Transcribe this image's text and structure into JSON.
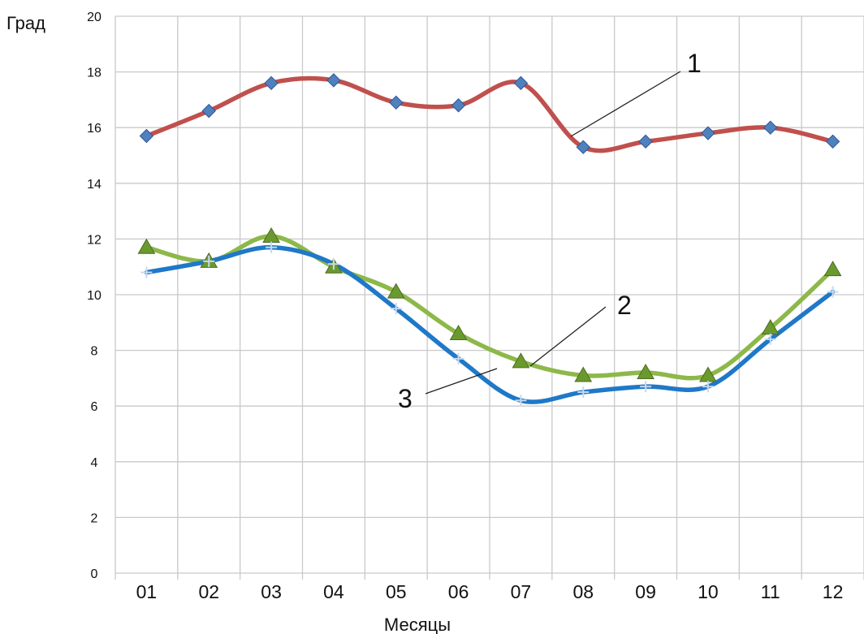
{
  "chart_data": {
    "type": "line",
    "categories": [
      "01",
      "02",
      "03",
      "04",
      "05",
      "06",
      "07",
      "08",
      "09",
      "10",
      "11",
      "12"
    ],
    "xlabel": "Месяцы",
    "ylabel": "Град",
    "ylim": [
      0,
      20
    ],
    "yticks": [
      "0",
      "2",
      "4",
      "6",
      "8",
      "10",
      "12",
      "14",
      "16",
      "18",
      "20"
    ],
    "grid": true,
    "series": [
      {
        "label": "1",
        "color": "#c0504d",
        "marker": "diamond",
        "marker_color": "#4f81bd",
        "values": [
          15.7,
          16.6,
          17.6,
          17.7,
          16.9,
          16.8,
          17.6,
          15.3,
          15.5,
          15.8,
          16.0,
          15.5
        ]
      },
      {
        "label": "2",
        "color": "#8db84a",
        "marker": "triangle",
        "marker_color": "#6a9a2e",
        "values": [
          11.7,
          11.2,
          12.1,
          11.0,
          10.1,
          8.6,
          7.6,
          7.1,
          7.2,
          7.1,
          8.8,
          10.9
        ]
      },
      {
        "label": "3",
        "color": "#1f78c8",
        "marker": "plus",
        "marker_color": "#c6d9f1",
        "values": [
          10.8,
          11.2,
          11.7,
          11.1,
          9.5,
          7.7,
          6.2,
          6.5,
          6.7,
          6.7,
          8.4,
          10.1
        ]
      }
    ]
  }
}
